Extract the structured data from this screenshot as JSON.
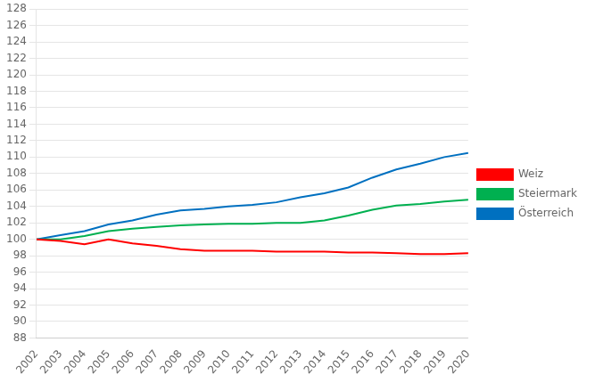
{
  "chart_data": {
    "type": "line",
    "x": [
      2002,
      2003,
      2004,
      2005,
      2006,
      2007,
      2008,
      2009,
      2010,
      2011,
      2012,
      2013,
      2014,
      2015,
      2016,
      2017,
      2018,
      2019,
      2020
    ],
    "series": [
      {
        "name": "Weiz",
        "color": "#ff0000",
        "values": [
          100.0,
          99.8,
          99.4,
          100.0,
          99.5,
          99.2,
          98.8,
          98.6,
          98.6,
          98.6,
          98.5,
          98.5,
          98.5,
          98.4,
          98.4,
          98.3,
          98.2,
          98.2,
          98.3
        ]
      },
      {
        "name": "Steiermark",
        "color": "#00b050",
        "values": [
          100.0,
          100.0,
          100.4,
          101.0,
          101.3,
          101.5,
          101.7,
          101.8,
          101.9,
          101.9,
          102.0,
          102.0,
          102.3,
          102.9,
          103.6,
          104.1,
          104.3,
          104.6,
          104.8
        ]
      },
      {
        "name": "Österreich",
        "color": "#0070c0",
        "values": [
          100.0,
          100.5,
          101.0,
          101.8,
          102.3,
          103.0,
          103.5,
          103.7,
          104.0,
          104.2,
          104.5,
          105.1,
          105.6,
          106.3,
          107.5,
          108.5,
          109.2,
          110.0,
          110.5
        ]
      }
    ],
    "xlim": [
      2002,
      2020
    ],
    "xticks": [
      2002,
      2003,
      2004,
      2005,
      2006,
      2007,
      2008,
      2009,
      2010,
      2011,
      2012,
      2013,
      2014,
      2015,
      2016,
      2017,
      2018,
      2019,
      2020
    ],
    "ylim": [
      88,
      128
    ],
    "yticks": [
      88,
      90,
      92,
      94,
      96,
      98,
      100,
      102,
      104,
      106,
      108,
      110,
      112,
      114,
      116,
      118,
      120,
      122,
      124,
      126,
      128
    ],
    "grid": "y",
    "legend": "right"
  }
}
